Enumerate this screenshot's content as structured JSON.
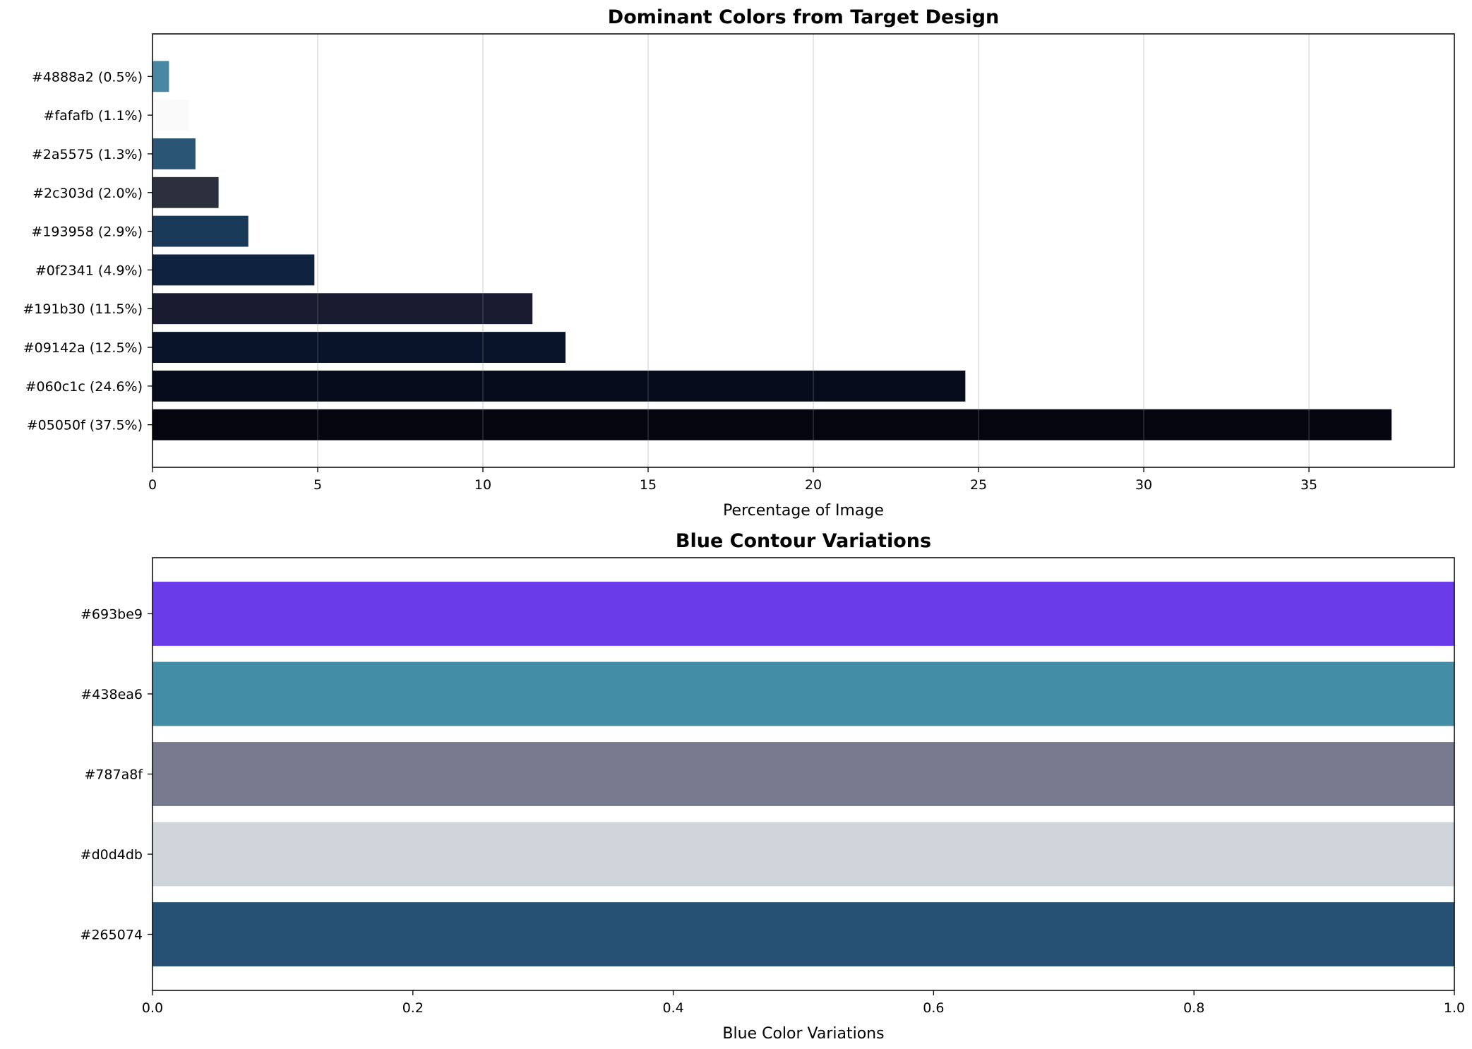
{
  "chart_data": [
    {
      "type": "bar",
      "orientation": "horizontal",
      "title": "Dominant Colors from Target Design",
      "xlabel": "Percentage of Image",
      "ylabel": "",
      "xlim": [
        0,
        39.4
      ],
      "xticks": [
        0,
        5,
        10,
        15,
        20,
        25,
        30,
        35
      ],
      "grid": "x",
      "categories": [
        "#05050f (37.5%)",
        "#060c1c (24.6%)",
        "#09142a (12.5%)",
        "#191b30 (11.5%)",
        "#0f2341 (4.9%)",
        "#193958 (2.9%)",
        "#2c303d (2.0%)",
        "#2a5575 (1.3%)",
        "#fafafb (1.1%)",
        "#4888a2 (0.5%)"
      ],
      "values": [
        37.5,
        24.6,
        12.5,
        11.5,
        4.9,
        2.9,
        2.0,
        1.3,
        1.1,
        0.5
      ],
      "colors": [
        "#05050f",
        "#060c1c",
        "#09142a",
        "#191b30",
        "#0f2341",
        "#193958",
        "#2c303d",
        "#2a5575",
        "#fafafb",
        "#4888a2"
      ]
    },
    {
      "type": "bar",
      "orientation": "horizontal",
      "title": "Blue Contour Variations",
      "xlabel": "Blue Color Variations",
      "ylabel": "",
      "xlim": [
        0,
        1
      ],
      "xticks": [
        "0.0",
        "0.2",
        "0.4",
        "0.6",
        "0.8",
        "1.0"
      ],
      "grid": "none",
      "categories": [
        "#265074",
        "#d0d4db",
        "#787a8f",
        "#438ea6",
        "#693be9"
      ],
      "values": [
        1,
        1,
        1,
        1,
        1
      ],
      "colors": [
        "#265074",
        "#d0d4db",
        "#787a8f",
        "#438ea6",
        "#693be9"
      ]
    }
  ]
}
